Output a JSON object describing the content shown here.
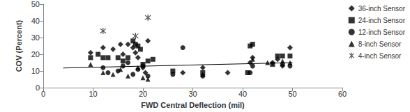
{
  "chart_data": {
    "type": "scatter",
    "x_label": "FWD Central Deflection (mil)",
    "y_label": "COV (Percent)",
    "xlim": [
      0,
      60
    ],
    "xticks": [
      0,
      10,
      20,
      30,
      40,
      50,
      60
    ],
    "ylim": [
      0,
      50
    ],
    "yticks": [
      0,
      10,
      20,
      30,
      40,
      50
    ],
    "grid": false,
    "legend": "right",
    "series": [
      {
        "name": "36-inch Sensor",
        "color": "#000000",
        "marker": "diamond",
        "x": [
          9.5,
          12,
          14,
          15.5,
          16,
          17,
          18,
          18.5,
          19,
          20,
          21,
          20.5,
          28,
          32,
          37,
          41.5,
          42,
          46,
          47,
          49.5,
          48
        ],
        "values": [
          21,
          24,
          23,
          26,
          20,
          26,
          24,
          21,
          18,
          12,
          28,
          9,
          9,
          12,
          9,
          15,
          18,
          15,
          17,
          24,
          13
        ]
      },
      {
        "name": "24-inch Sensor",
        "color": "#000000",
        "marker": "square",
        "x": [
          9.5,
          11,
          12,
          13,
          15,
          16,
          17,
          18,
          18.5,
          19,
          19.5,
          20,
          21,
          22,
          26,
          32,
          41.5,
          42,
          46,
          47,
          48,
          49.5,
          41
        ],
        "values": [
          18,
          20,
          18,
          18,
          18,
          16,
          18,
          28,
          26,
          25,
          23,
          14,
          16,
          17,
          10,
          9,
          25,
          26,
          14,
          19,
          19,
          19,
          9
        ]
      },
      {
        "name": "12-inch Sensor",
        "color": "#000000",
        "marker": "circle",
        "x": [
          12,
          13,
          15,
          16,
          17,
          18,
          19,
          20,
          21,
          26,
          28,
          32,
          41.5,
          48,
          49.5,
          42
        ],
        "values": [
          12,
          9,
          10,
          13,
          15,
          8,
          11,
          13,
          7,
          8,
          24,
          7,
          9,
          14,
          13,
          13
        ]
      },
      {
        "name": "8-inch Sensor",
        "color": "#000000",
        "marker": "triangle",
        "x": [
          9.5,
          12,
          14,
          15.5,
          17,
          19,
          20,
          21,
          32,
          42,
          45,
          48,
          49.5
        ],
        "values": [
          14,
          9,
          8,
          11,
          7,
          12,
          6,
          5,
          8,
          17,
          15,
          16,
          15
        ]
      },
      {
        "name": "4-inch Sensor",
        "color": "#000000",
        "marker": "asterisk",
        "x": [
          12,
          18.5,
          21
        ],
        "values": [
          34,
          31,
          42
        ]
      },
      {
        "type": "line",
        "color": "#000000",
        "line_style": "solid",
        "x": [
          4,
          50
        ],
        "values": [
          11.8,
          15
        ]
      }
    ]
  }
}
